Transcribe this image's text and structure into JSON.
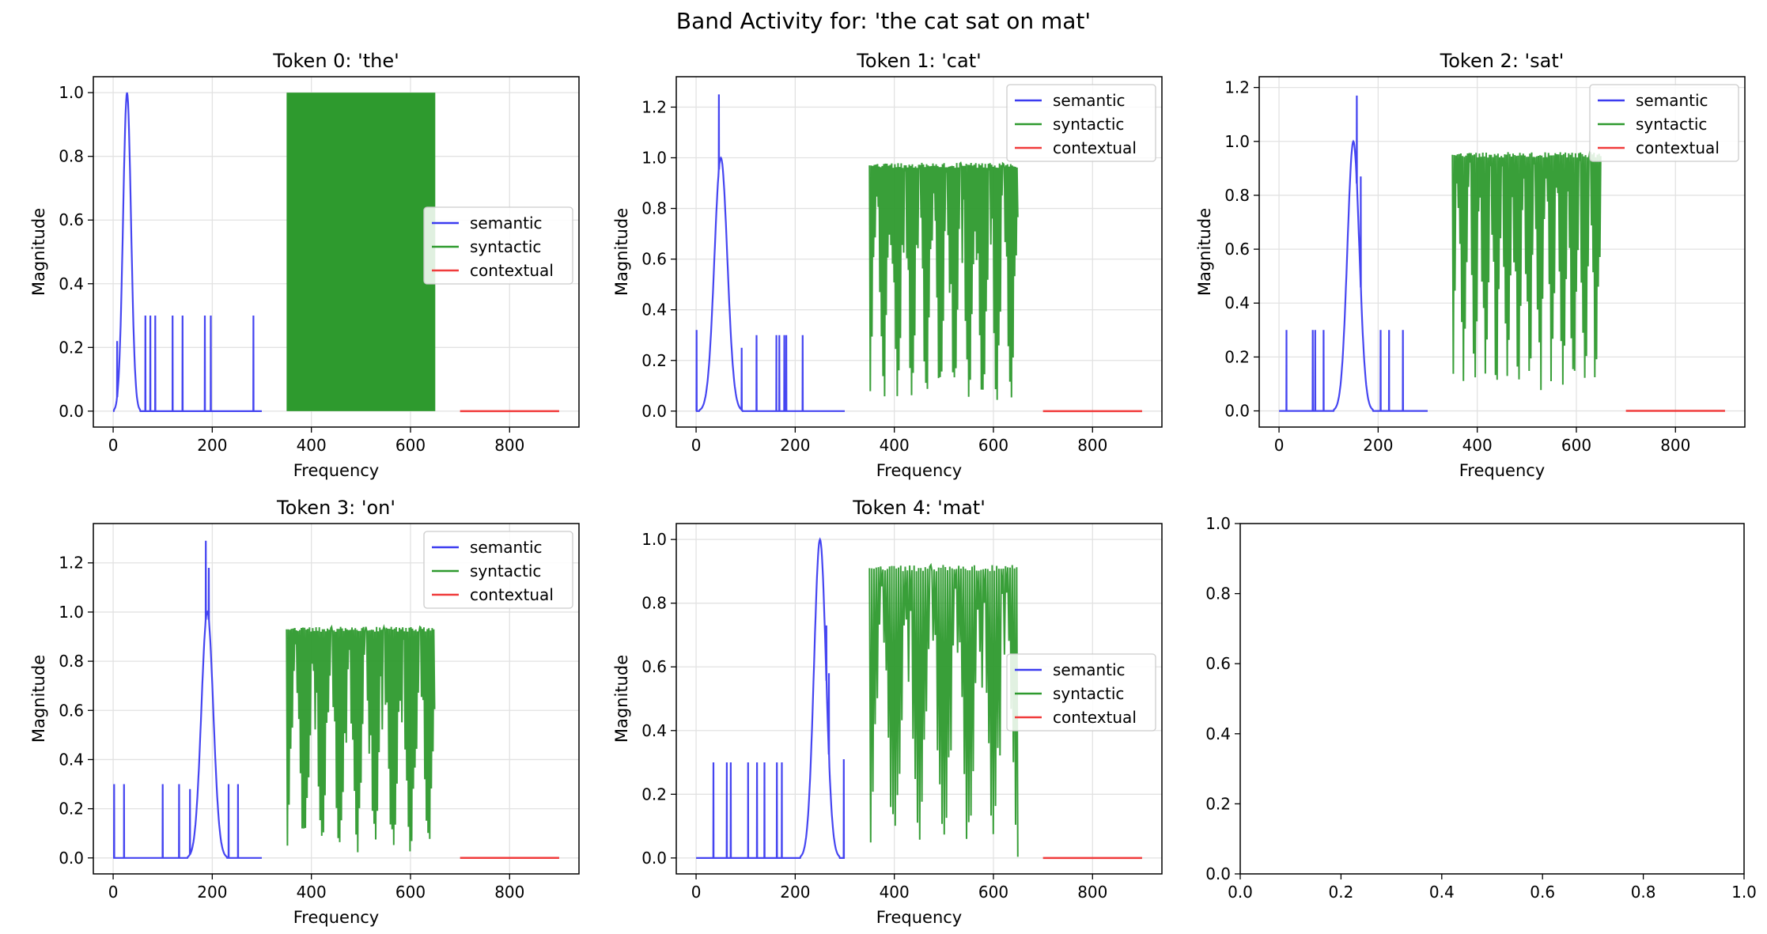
{
  "figure_title": "Band Activity for: 'the cat sat on mat'",
  "colors": {
    "semantic": "#3b3bf0",
    "syntactic": "#2e9a2e",
    "contextual": "#f03b3b",
    "grid": "#e2e2e2"
  },
  "chart_data": [
    {
      "type": "line",
      "title": "Token 0: 'the'",
      "xlabel": "Frequency",
      "ylabel": "Magnitude",
      "xlim": [
        -40,
        940
      ],
      "ylim": [
        -0.05,
        1.05
      ],
      "xticks": [
        0,
        200,
        400,
        600,
        800
      ],
      "xtick_labels": [
        "0",
        "200",
        "400",
        "600",
        "800"
      ],
      "yticks": [
        0,
        0.2,
        0.4,
        0.6,
        0.8,
        1.0
      ],
      "ytick_labels": [
        "0.0",
        "0.2",
        "0.4",
        "0.6",
        "0.8",
        "1.0"
      ],
      "grid": true,
      "legend_position": "center-right",
      "legend": [
        "semantic",
        "syntactic",
        "contextual"
      ],
      "series": [
        {
          "name": "semantic",
          "band": [
            0,
            300
          ],
          "peak_center": 28,
          "peak_width": 8,
          "peak_height": 1.0,
          "spikes": [
            [
              8,
              0.22
            ],
            [
              65,
              0.3
            ],
            [
              75,
              0.3
            ],
            [
              85,
              0.3
            ],
            [
              120,
              0.3
            ],
            [
              140,
              0.3
            ],
            [
              185,
              0.3
            ],
            [
              197,
              0.3
            ],
            [
              283,
              0.3
            ]
          ]
        },
        {
          "name": "syntactic",
          "band": [
            350,
            650
          ],
          "min": 0.0,
          "max": 1.0,
          "filled": true
        },
        {
          "name": "contextual",
          "band": [
            700,
            900
          ],
          "value": 0.0
        }
      ]
    },
    {
      "type": "line",
      "title": "Token 1: 'cat'",
      "xlabel": "Frequency",
      "ylabel": "Magnitude",
      "xlim": [
        -40,
        940
      ],
      "ylim": [
        -0.063,
        1.32
      ],
      "xticks": [
        0,
        200,
        400,
        600,
        800
      ],
      "xtick_labels": [
        "0",
        "200",
        "400",
        "600",
        "800"
      ],
      "yticks": [
        0,
        0.2,
        0.4,
        0.6,
        0.8,
        1.0,
        1.2
      ],
      "ytick_labels": [
        "0.0",
        "0.2",
        "0.4",
        "0.6",
        "0.8",
        "1.0",
        "1.2"
      ],
      "grid": true,
      "legend_position": "top-right",
      "legend": [
        "semantic",
        "syntactic",
        "contextual"
      ],
      "series": [
        {
          "name": "semantic",
          "band": [
            0,
            300
          ],
          "peak_center": 50,
          "peak_width": 13,
          "peak_height": 1.0,
          "spikes": [
            [
              1,
              0.32
            ],
            [
              46,
              1.25
            ],
            [
              92,
              0.25
            ],
            [
              122,
              0.3
            ],
            [
              162,
              0.3
            ],
            [
              168,
              0.3
            ],
            [
              178,
              0.3
            ],
            [
              182,
              0.3
            ],
            [
              215,
              0.3
            ]
          ]
        },
        {
          "name": "syntactic",
          "band": [
            350,
            650
          ],
          "min": 0.02,
          "max": 0.98,
          "osc_period": 3.2,
          "env_freq": 0.035
        },
        {
          "name": "contextual",
          "band": [
            700,
            900
          ],
          "value": 0.0
        }
      ]
    },
    {
      "type": "line",
      "title": "Token 2: 'sat'",
      "xlabel": "Frequency",
      "ylabel": "Magnitude",
      "xlim": [
        -40,
        940
      ],
      "ylim": [
        -0.06,
        1.24
      ],
      "xticks": [
        0,
        200,
        400,
        600,
        800
      ],
      "xtick_labels": [
        "0",
        "200",
        "400",
        "600",
        "800"
      ],
      "yticks": [
        0,
        0.2,
        0.4,
        0.6,
        0.8,
        1.0,
        1.2
      ],
      "ytick_labels": [
        "0.0",
        "0.2",
        "0.4",
        "0.6",
        "0.8",
        "1.0",
        "1.2"
      ],
      "grid": true,
      "legend_position": "top-right",
      "legend": [
        "semantic",
        "syntactic",
        "contextual"
      ],
      "series": [
        {
          "name": "semantic",
          "band": [
            0,
            300
          ],
          "peak_center": 150,
          "peak_width": 12,
          "peak_height": 1.0,
          "spikes": [
            [
              15,
              0.3
            ],
            [
              68,
              0.3
            ],
            [
              73,
              0.3
            ],
            [
              90,
              0.3
            ],
            [
              157,
              1.17
            ],
            [
              165,
              0.87
            ],
            [
              205,
              0.3
            ],
            [
              222,
              0.3
            ],
            [
              250,
              0.3
            ]
          ]
        },
        {
          "name": "syntactic",
          "band": [
            350,
            650
          ],
          "min": 0.06,
          "max": 0.96,
          "osc_period": 3.4,
          "env_freq": 0.045
        },
        {
          "name": "contextual",
          "band": [
            700,
            900
          ],
          "value": 0.0
        }
      ]
    },
    {
      "type": "line",
      "title": "Token 3: 'on'",
      "xlabel": "Frequency",
      "ylabel": "Magnitude",
      "xlim": [
        -40,
        940
      ],
      "ylim": [
        -0.065,
        1.36
      ],
      "xticks": [
        0,
        200,
        400,
        600,
        800
      ],
      "xtick_labels": [
        "0",
        "200",
        "400",
        "600",
        "800"
      ],
      "yticks": [
        0,
        0.2,
        0.4,
        0.6,
        0.8,
        1.0,
        1.2
      ],
      "ytick_labels": [
        "0.0",
        "0.2",
        "0.4",
        "0.6",
        "0.8",
        "1.0",
        "1.2"
      ],
      "grid": true,
      "legend_position": "top-right",
      "legend": [
        "semantic",
        "syntactic",
        "contextual"
      ],
      "series": [
        {
          "name": "semantic",
          "band": [
            0,
            300
          ],
          "peak_center": 190,
          "peak_width": 12,
          "peak_height": 1.0,
          "spikes": [
            [
              2,
              0.3
            ],
            [
              22,
              0.3
            ],
            [
              100,
              0.3
            ],
            [
              133,
              0.3
            ],
            [
              155,
              0.28
            ],
            [
              187,
              1.29
            ],
            [
              193,
              1.18
            ],
            [
              233,
              0.3
            ],
            [
              252,
              0.3
            ]
          ]
        },
        {
          "name": "syntactic",
          "band": [
            350,
            650
          ],
          "min": 0.0,
          "max": 0.94,
          "osc_period": 3.3,
          "env_freq": 0.028
        },
        {
          "name": "contextual",
          "band": [
            700,
            900
          ],
          "value": 0.0
        }
      ]
    },
    {
      "type": "line",
      "title": "Token 4: 'mat'",
      "xlabel": "Frequency",
      "ylabel": "Magnitude",
      "xlim": [
        -40,
        940
      ],
      "ylim": [
        -0.05,
        1.05
      ],
      "xticks": [
        0,
        200,
        400,
        600,
        800
      ],
      "xtick_labels": [
        "0",
        "200",
        "400",
        "600",
        "800"
      ],
      "yticks": [
        0,
        0.2,
        0.4,
        0.6,
        0.8,
        1.0
      ],
      "ytick_labels": [
        "0.0",
        "0.2",
        "0.4",
        "0.6",
        "0.8",
        "1.0"
      ],
      "grid": true,
      "legend_position": "center-right",
      "legend": [
        "semantic",
        "syntactic",
        "contextual"
      ],
      "series": [
        {
          "name": "semantic",
          "band": [
            0,
            300
          ],
          "peak_center": 250,
          "peak_width": 12,
          "peak_height": 1.0,
          "spikes": [
            [
              35,
              0.3
            ],
            [
              62,
              0.3
            ],
            [
              70,
              0.3
            ],
            [
              105,
              0.3
            ],
            [
              123,
              0.3
            ],
            [
              138,
              0.3
            ],
            [
              163,
              0.3
            ],
            [
              173,
              0.3
            ],
            [
              263,
              0.73
            ],
            [
              268,
              0.58
            ],
            [
              298,
              0.31
            ]
          ]
        },
        {
          "name": "syntactic",
          "band": [
            350,
            650
          ],
          "min": 0.0,
          "max": 0.92,
          "osc_period": 4.5,
          "env_freq": 0.02
        },
        {
          "name": "contextual",
          "band": [
            700,
            900
          ],
          "value": 0.0
        }
      ]
    },
    {
      "type": "line",
      "title": "",
      "xlim": [
        0,
        1
      ],
      "ylim": [
        0,
        1
      ],
      "xticks": [
        0,
        0.2,
        0.4,
        0.6,
        0.8,
        1.0
      ],
      "xtick_labels": [
        "0.0",
        "0.2",
        "0.4",
        "0.6",
        "0.8",
        "1.0"
      ],
      "yticks": [
        0,
        0.2,
        0.4,
        0.6,
        0.8,
        1.0
      ],
      "ytick_labels": [
        "0.0",
        "0.2",
        "0.4",
        "0.6",
        "0.8",
        "1.0"
      ],
      "grid": false,
      "series": []
    }
  ]
}
